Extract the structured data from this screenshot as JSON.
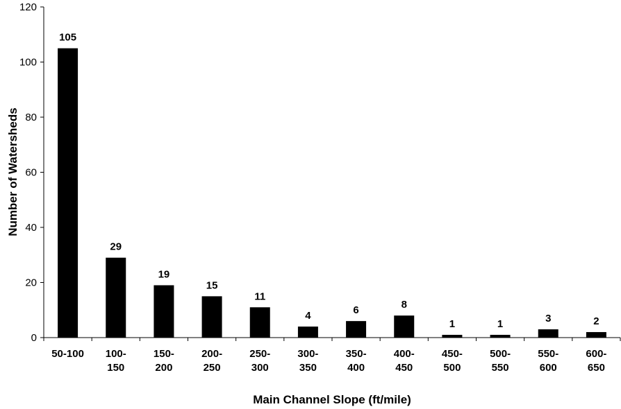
{
  "chart_data": {
    "type": "bar",
    "categories": [
      [
        "50-100"
      ],
      [
        "100-",
        "150"
      ],
      [
        "150-",
        "200"
      ],
      [
        "200-",
        "250"
      ],
      [
        "250-",
        "300"
      ],
      [
        "300-",
        "350"
      ],
      [
        "350-",
        "400"
      ],
      [
        "400-",
        "450"
      ],
      [
        "450-",
        "500"
      ],
      [
        "500-",
        "550"
      ],
      [
        "550-",
        "600"
      ],
      [
        "600-",
        "650"
      ]
    ],
    "values": [
      105,
      29,
      19,
      15,
      11,
      4,
      6,
      8,
      1,
      1,
      3,
      2
    ],
    "data_labels": [
      "105",
      "29",
      "19",
      "15",
      "11",
      "4",
      "6",
      "8",
      "1",
      "1",
      "3",
      "2"
    ],
    "xlabel": "Main Channel Slope (ft/mile)",
    "ylabel": "Number of Watersheds",
    "ylim": [
      0,
      120
    ],
    "yticks": [
      0,
      20,
      40,
      60,
      80,
      100,
      120
    ],
    "grid": false,
    "bar_color": "#000000"
  }
}
